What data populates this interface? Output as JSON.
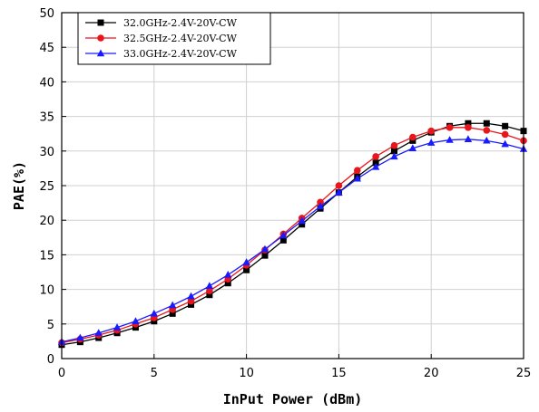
{
  "chart_data": {
    "type": "line",
    "title": "",
    "xlabel": "InPut Power (dBm)",
    "ylabel": "PAE(%)",
    "xlim": [
      0,
      25
    ],
    "ylim": [
      0,
      50
    ],
    "xticks": [
      0,
      5,
      10,
      15,
      20,
      25
    ],
    "yticks": [
      0,
      5,
      10,
      15,
      20,
      25,
      30,
      35,
      40,
      45,
      50
    ],
    "grid": true,
    "legend_position": "top-left",
    "x": [
      0,
      1,
      2,
      3,
      4,
      5,
      6,
      7,
      8,
      9,
      10,
      11,
      12,
      13,
      14,
      15,
      16,
      17,
      18,
      19,
      20,
      21,
      22,
      23,
      24,
      25
    ],
    "series": [
      {
        "name": "32.0GHz-2.4V-20V-CW",
        "color": "#000000",
        "marker": "square",
        "values": [
          2.0,
          2.4,
          3.0,
          3.7,
          4.5,
          5.4,
          6.5,
          7.8,
          9.2,
          10.9,
          12.8,
          14.9,
          17.1,
          19.4,
          21.7,
          24.0,
          26.3,
          28.3,
          30.0,
          31.5,
          32.7,
          33.6,
          34.0,
          34.0,
          33.6,
          32.9
        ]
      },
      {
        "name": "32.5GHz-2.4V-20V-CW",
        "color": "#e8151b",
        "marker": "circle",
        "values": [
          2.3,
          2.8,
          3.4,
          4.1,
          5.0,
          5.9,
          7.1,
          8.3,
          9.8,
          11.5,
          13.5,
          15.7,
          18.0,
          20.3,
          22.6,
          25.0,
          27.2,
          29.2,
          30.8,
          32.0,
          32.9,
          33.4,
          33.4,
          33.0,
          32.4,
          31.5
        ]
      },
      {
        "name": "33.0GHz-2.4V-20V-CW",
        "color": "#1a1aff",
        "marker": "triangle",
        "values": [
          2.4,
          3.0,
          3.7,
          4.5,
          5.4,
          6.5,
          7.7,
          9.0,
          10.5,
          12.1,
          13.9,
          15.8,
          17.8,
          19.9,
          22.0,
          24.0,
          26.0,
          27.7,
          29.2,
          30.4,
          31.2,
          31.6,
          31.7,
          31.5,
          31.0,
          30.3
        ]
      }
    ]
  }
}
